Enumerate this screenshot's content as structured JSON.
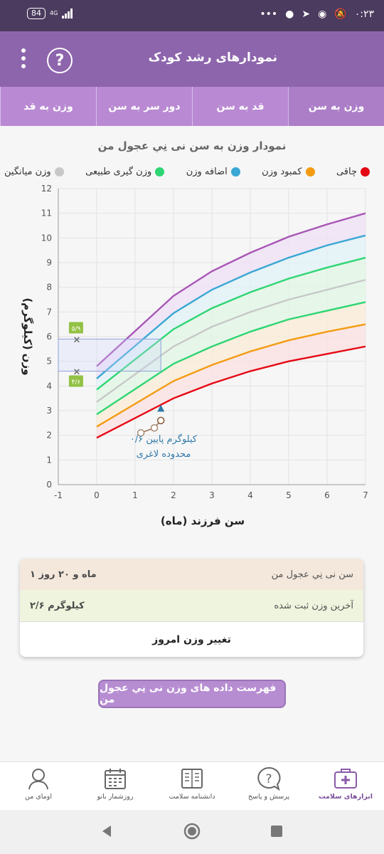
{
  "status_bar": {
    "battery": "84",
    "network": "4G",
    "time": "۰:۲۳",
    "menu_dots": "•••"
  },
  "header": {
    "title": "نمودارهای رشد کودک",
    "help_icon": "help-circle-icon",
    "menu_icon": "more-vertical-icon"
  },
  "tabs": [
    {
      "label": "وزن به سن",
      "active": true
    },
    {
      "label": "قد به سن",
      "active": false
    },
    {
      "label": "دور سر به سن",
      "active": false
    },
    {
      "label": "وزن به قد",
      "active": false
    }
  ],
  "chart_title": "نمودار وزن به سن نی نِي عجول من",
  "legend": [
    {
      "label": "چاقی",
      "color": "#e50914"
    },
    {
      "label": "کمبود وزن",
      "color": "#f39c12"
    },
    {
      "label": "اضافه وزن",
      "color": "#3aa7d4"
    },
    {
      "label": "وزن گیری طبیعی",
      "color": "#2ed573"
    },
    {
      "label": "وزن میانگین",
      "color": "#c8c8c8"
    }
  ],
  "chart_data": {
    "type": "line",
    "xlabel": "سن فرزند (ماه)",
    "ylabel": "وزن (کیلوگرم)",
    "xlim": [
      -1,
      7
    ],
    "ylim": [
      0,
      12
    ],
    "x_ticks": [
      "-1",
      "0",
      "1",
      "2",
      "3",
      "4",
      "5",
      "6",
      "7"
    ],
    "y_ticks": [
      "0",
      "1",
      "2",
      "3",
      "4",
      "5",
      "6",
      "7",
      "8",
      "9",
      "10",
      "11",
      "12"
    ],
    "x": [
      0,
      2,
      3,
      4,
      5,
      6,
      7
    ],
    "series": [
      {
        "color": "#e50914",
        "values": [
          1.9,
          3.5,
          4.1,
          4.6,
          5.0,
          5.3,
          5.6
        ]
      },
      {
        "color": "#f39c12",
        "values": [
          2.35,
          4.2,
          4.85,
          5.4,
          5.85,
          6.2,
          6.5
        ]
      },
      {
        "color": "#2ed573",
        "values": [
          2.85,
          4.9,
          5.6,
          6.2,
          6.7,
          7.05,
          7.4
        ]
      },
      {
        "color": "#c8c8c8",
        "values": [
          3.35,
          5.6,
          6.4,
          7.0,
          7.5,
          7.9,
          8.3
        ]
      },
      {
        "color": "#2ed573",
        "values": [
          3.85,
          6.3,
          7.15,
          7.8,
          8.35,
          8.8,
          9.2
        ]
      },
      {
        "color": "#3aa7d4",
        "values": [
          4.3,
          6.95,
          7.9,
          8.6,
          9.2,
          9.7,
          10.1
        ]
      },
      {
        "color": "#a855b5",
        "values": [
          4.8,
          7.65,
          8.65,
          9.4,
          10.05,
          10.55,
          11.0
        ]
      }
    ],
    "band_colors": [
      "#fbe0e2",
      "#fbecd5",
      "#e0f7e4",
      "#e0f7e4",
      "#e0f2f7",
      "#ede0f5"
    ],
    "child_points": [
      {
        "x": 1.15,
        "y": 2.1
      },
      {
        "x": 1.5,
        "y": 2.3
      },
      {
        "x": 1.67,
        "y": 2.6
      }
    ],
    "marker_x": 1.67,
    "marker_y": 3.1,
    "highlight": {
      "x_range": [
        -1,
        1.67
      ],
      "y_range": [
        4.6,
        5.9
      ]
    },
    "range_labels": {
      "upper": "۵/۹",
      "lower": "۴/۶"
    },
    "annotation": [
      "۰/۶ کیلوگرم پایین",
      "محدوده لاغری"
    ]
  },
  "info": {
    "age_label": "سن نی نِي عجول من",
    "age_value": "۱ ماه و ۲۰ روز",
    "weight_label": "آخرین وزن ثبت شده",
    "weight_value": "۲/۶ کیلوگرم",
    "change_button": "تغییر وزن امروز"
  },
  "list_button": "فهرست داده های وزن نی نِي عجول من",
  "bottom_nav": [
    {
      "label": "ابزارهای سلامت",
      "icon": "medical-kit-icon",
      "active": true
    },
    {
      "label": "پرسش و پاسخ",
      "icon": "question-bubble-icon",
      "active": false
    },
    {
      "label": "دانشنامه سلامت",
      "icon": "book-icon",
      "active": false
    },
    {
      "label": "روزشمار بانو",
      "icon": "calendar-icon",
      "active": false
    },
    {
      "label": "اومای من",
      "icon": "user-icon",
      "active": false
    }
  ]
}
